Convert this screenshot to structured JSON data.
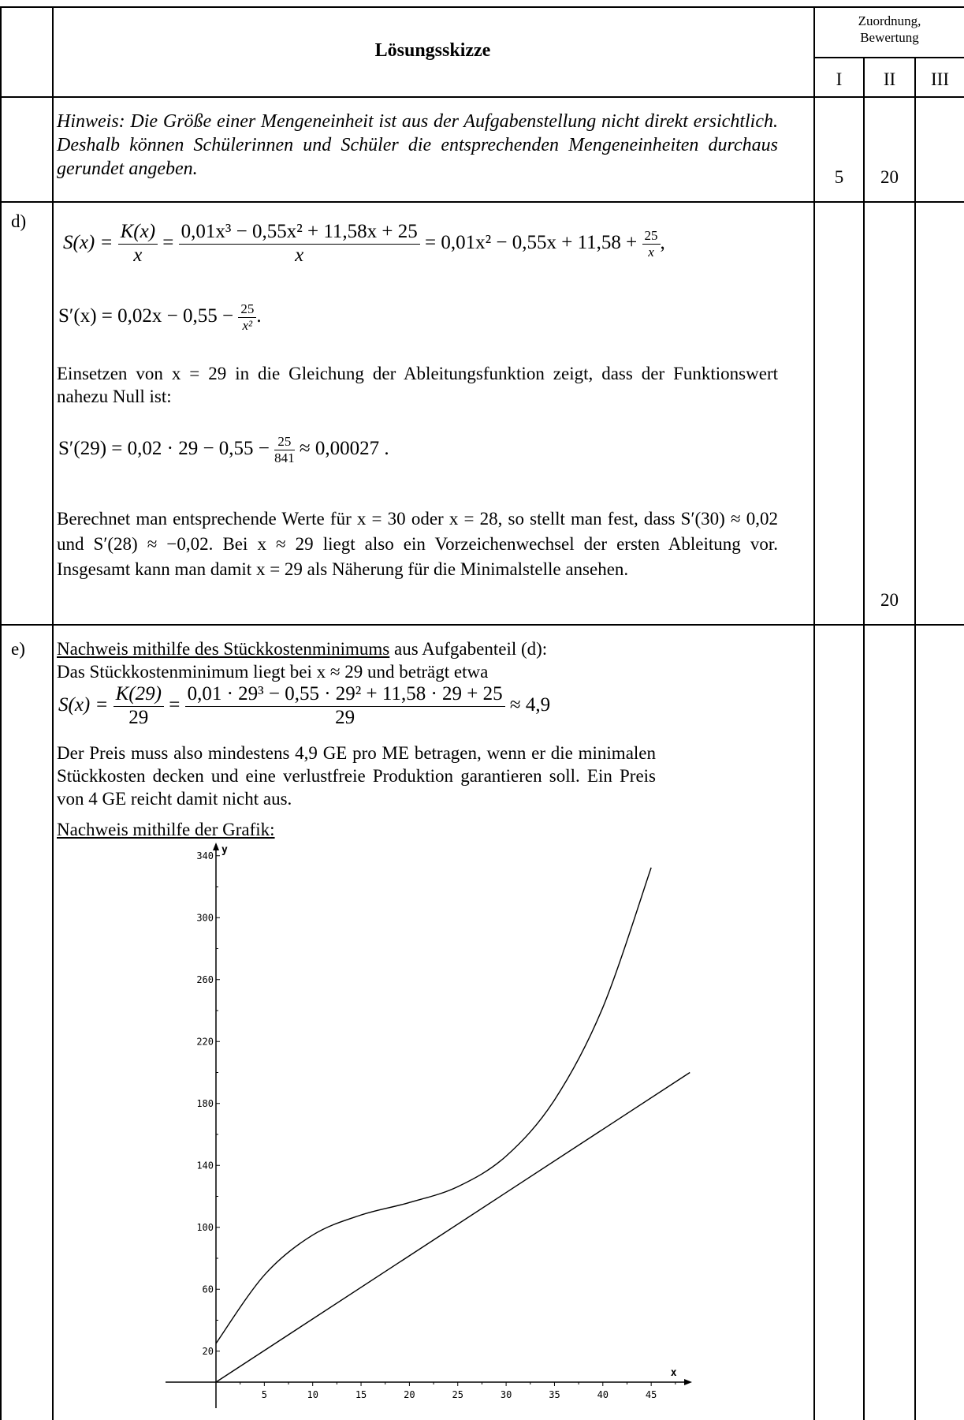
{
  "header": {
    "title": "Lösungsskizze",
    "zuordnung_line1": "Zuordnung,",
    "zuordnung_line2": "Bewertung",
    "col_I": "I",
    "col_II": "II",
    "col_III": "III"
  },
  "hint": {
    "text": "Hinweis: Die Größe einer Mengeneinheit ist aus der Aufgabenstellung nicht direkt ersichtlich. Deshalb können Schülerinnen und Schüler die entsprechenden Mengeneinheiten durchaus gerundet angeben.",
    "score_I": "5",
    "score_II": "20"
  },
  "part_d": {
    "label": "d)",
    "eq1_lhs": "S(x) =",
    "eq1_frac1_num": "K(x)",
    "eq1_frac1_den": "x",
    "eq1_frac2_num": "0,01x³ − 0,55x² + 11,58x + 25",
    "eq1_frac2_den": "x",
    "eq1_rhs": "= 0,01x² − 0,55x + 11,58 +",
    "eq1_frac3_num": "25",
    "eq1_frac3_den": "x",
    "eq1_end": ",",
    "eq2_lhs": "S′(x) = 0,02x − 0,55 −",
    "eq2_frac_num": "25",
    "eq2_frac_den": "x²",
    "eq2_end": ".",
    "text1": "Einsetzen von x = 29 in die Gleichung der Ableitungsfunktion zeigt, dass der Funktionswert nahezu Null ist:",
    "eq3_lhs": "S′(29) = 0,02 · 29 − 0,55 −",
    "eq3_frac_num": "25",
    "eq3_frac_den": "841",
    "eq3_rhs": "≈ 0,00027 .",
    "text2": "Berechnet man entsprechende Werte für x = 30 oder x = 28, so stellt man fest, dass S′(30) ≈ 0,02 und S′(28) ≈ −0,02. Bei x ≈ 29 liegt also ein Vorzeichen­wechsel der ersten Ableitung vor. Insgesamt kann man damit x = 29 als Nähe­rung für die Minimalstelle ansehen.",
    "score_II": "20"
  },
  "part_e": {
    "label": "e)",
    "heading1": "Nachweis mithilfe des Stückkostenminimums",
    "heading1_suffix": " aus Aufgabenteil (d):",
    "line2": "Das Stückkostenminimum liegt bei x ≈ 29 und beträgt etwa",
    "eq_lhs": "S(x) =",
    "eq_frac1_num": "K(29)",
    "eq_frac1_den": "29",
    "eq_frac2_num": "0,01 · 29³ − 0,55 · 29² + 11,58 · 29 + 25",
    "eq_frac2_den": "29",
    "eq_rhs": "≈ 4,9",
    "text": "Der Preis muss also mindestens 4,9 GE pro ME betragen, wenn er die minima­len Stückkosten decken und eine verlustfreie Produktion garantieren soll. Ein Preis von 4 GE reicht damit nicht aus.",
    "heading2": "Nachweis mithilfe der Grafik:"
  },
  "chart_data": {
    "type": "line",
    "xlabel": "x",
    "ylabel": "y",
    "x_ticks": [
      5,
      10,
      15,
      20,
      25,
      30,
      35,
      40,
      45
    ],
    "y_ticks": [
      20,
      60,
      100,
      140,
      180,
      220,
      260,
      300,
      340
    ],
    "xlim": [
      0,
      49
    ],
    "ylim": [
      0,
      345
    ],
    "series": [
      {
        "x": [
          0,
          5,
          10,
          15,
          20,
          25,
          30,
          35,
          40,
          45
        ],
        "y": [
          25,
          69.15,
          95,
          107.95,
          116,
          126.25,
          146,
          182.25,
          242,
          332.35
        ]
      },
      {
        "x": [
          0,
          49
        ],
        "y": [
          0,
          200
        ]
      }
    ]
  }
}
